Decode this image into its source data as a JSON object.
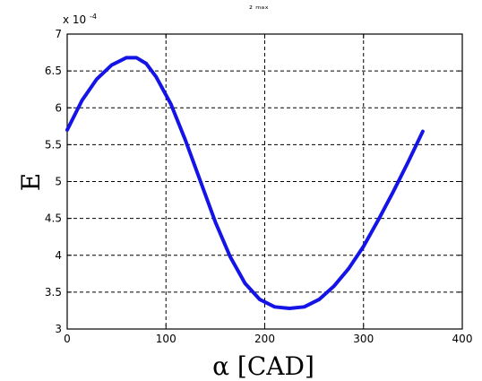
{
  "chart_data": {
    "type": "line",
    "title": "",
    "xlabel": "α [CAD]",
    "ylabel": "E",
    "xlim": [
      0,
      400
    ],
    "ylim": [
      3,
      7
    ],
    "x_ticks": [
      "0",
      "100",
      "200",
      "300",
      "400"
    ],
    "y_ticks": [
      "3",
      "3.5",
      "4",
      "4.5",
      "5",
      "5.5",
      "6",
      "6.5",
      "7"
    ],
    "y_multiplier_text": "x 10",
    "y_multiplier_exponent": "-4",
    "grid": true,
    "series": [
      {
        "x": [
          0,
          15,
          30,
          45,
          60,
          70,
          80,
          90,
          105,
          120,
          135,
          150,
          165,
          180,
          195,
          210,
          225,
          240,
          255,
          270,
          285,
          300,
          315,
          330,
          345,
          360
        ],
        "values": [
          5.7,
          6.1,
          6.39,
          6.58,
          6.68,
          6.68,
          6.6,
          6.42,
          6.05,
          5.55,
          5.0,
          4.45,
          3.98,
          3.62,
          3.4,
          3.3,
          3.28,
          3.3,
          3.4,
          3.58,
          3.82,
          4.12,
          4.48,
          4.86,
          5.26,
          5.68
        ]
      }
    ],
    "line_color": "#1414e6",
    "clipped_header_fragment": "₂ ₘₐₓ"
  }
}
